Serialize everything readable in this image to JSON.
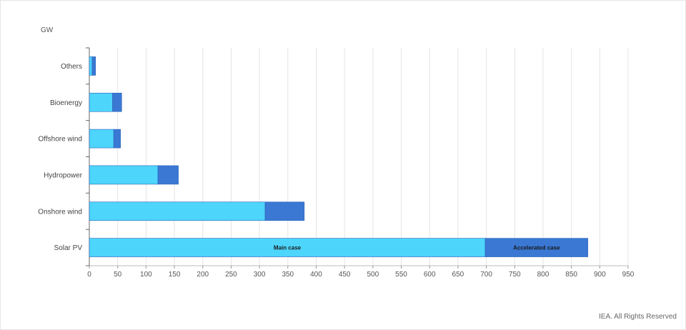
{
  "chart_data": {
    "type": "bar",
    "orientation": "horizontal",
    "stacked": true,
    "unit": "GW",
    "categories": [
      "Others",
      "Bioenergy",
      "Offshore wind",
      "Hydropower",
      "Onshore wind",
      "Solar PV"
    ],
    "series": [
      {
        "name": "Main case",
        "color": "#4dd5fb",
        "values": [
          5,
          41,
          43,
          121,
          310,
          698
        ]
      },
      {
        "name": "Accelerated case",
        "color": "#3a78d4",
        "values": [
          6,
          16,
          12,
          36,
          69,
          181
        ]
      }
    ],
    "series_labels_shown_on_category": "Solar PV",
    "xlim": [
      0,
      950
    ],
    "xticks": [
      0,
      50,
      100,
      150,
      200,
      250,
      300,
      350,
      400,
      450,
      500,
      550,
      600,
      650,
      700,
      750,
      800,
      850,
      900,
      950
    ],
    "grid": "vertical",
    "legend": "none"
  },
  "credit": "IEA. All Rights Reserved"
}
